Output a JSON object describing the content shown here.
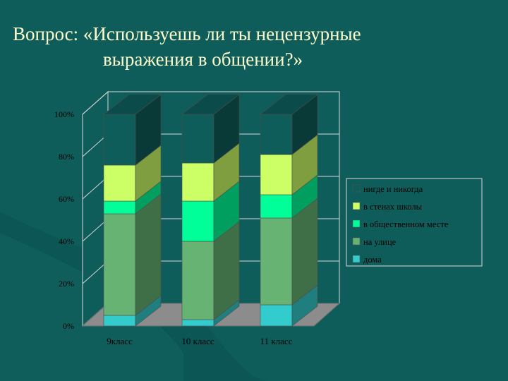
{
  "slide": {
    "title_line1": "Вопрос: «Используешь ли ты нецензурные",
    "title_line2": "выражения в общении?»"
  },
  "chart_data": {
    "type": "bar",
    "stacked": true,
    "three_d": true,
    "categories": [
      "9класс",
      "10 класс",
      "11 класс"
    ],
    "y_ticks": [
      "0%",
      "20%",
      "40%",
      "60%",
      "80%",
      "100%"
    ],
    "ylim": [
      0,
      100
    ],
    "title": "",
    "xlabel": "",
    "ylabel": "",
    "grid": true,
    "legend_position": "right",
    "series": [
      {
        "name": "дома",
        "color": "#33cccc",
        "values": [
          5,
          3,
          10
        ]
      },
      {
        "name": "на улице",
        "color": "#66b373",
        "values": [
          48,
          37,
          41
        ]
      },
      {
        "name": "в общественном месте",
        "color": "#00ff99",
        "values": [
          6,
          19,
          11
        ]
      },
      {
        "name": "в стенах школы",
        "color": "#ccff66",
        "values": [
          17,
          18,
          19
        ]
      },
      {
        "name": "нигде и никогда",
        "color": "#0e5d5b",
        "values": [
          24,
          23,
          19
        ]
      }
    ]
  }
}
